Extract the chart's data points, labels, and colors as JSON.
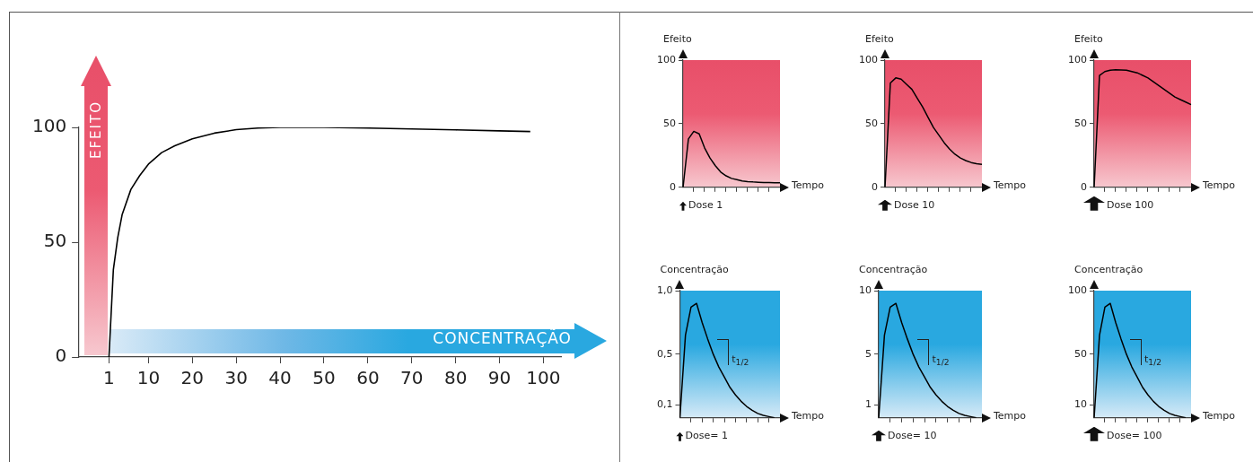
{
  "chart_data": [
    {
      "type": "line",
      "ylabel": "EFEITO",
      "xlabel": "CONCENTRAÇÃO",
      "xlim": [
        -6,
        104
      ],
      "xticks": [
        1,
        10,
        20,
        30,
        40,
        50,
        60,
        70,
        80,
        90,
        100
      ],
      "ylim": [
        0,
        100
      ],
      "yticks": [
        0,
        50,
        100
      ],
      "grid": false,
      "series": [
        {
          "color": "#000000",
          "x": [
            1,
            2,
            3,
            4,
            6,
            8,
            10,
            13,
            16,
            20,
            25,
            30,
            35,
            40,
            50,
            60,
            70,
            80,
            90,
            97
          ],
          "values": [
            0,
            38,
            52,
            62,
            73,
            79,
            84,
            89,
            92,
            95,
            97.5,
            99,
            99.7,
            100,
            100,
            99.7,
            99.3,
            98.9,
            98.5,
            98.2
          ]
        }
      ]
    },
    {
      "type": "line",
      "ylabel": "Efeito",
      "xlabel": "Tempo",
      "annotations": [
        "Dose 1"
      ],
      "categories": [
        null,
        null,
        null,
        null,
        null,
        null,
        null,
        null,
        null,
        null,
        null,
        null,
        null,
        null,
        null,
        null,
        null,
        null,
        null
      ],
      "ylim": [
        0,
        100
      ],
      "yticks": [
        0,
        50,
        100
      ],
      "grid": false,
      "series": [
        {
          "color": "#000000",
          "values": [
            0,
            38,
            44,
            42,
            31,
            23,
            17,
            12,
            9,
            7,
            6,
            5,
            4.5,
            4.2,
            4,
            3.8,
            3.7,
            3.6,
            3.5
          ]
        }
      ]
    },
    {
      "type": "line",
      "ylabel": "Efeito",
      "xlabel": "Tempo",
      "annotations": [
        "Dose 10"
      ],
      "categories": [
        null,
        null,
        null,
        null,
        null,
        null,
        null,
        null,
        null,
        null,
        null,
        null,
        null,
        null,
        null,
        null,
        null,
        null,
        null
      ],
      "ylim": [
        0,
        100
      ],
      "yticks": [
        0,
        50,
        100
      ],
      "grid": false,
      "series": [
        {
          "color": "#000000",
          "values": [
            0,
            82,
            86,
            85,
            81,
            77,
            70,
            63,
            55,
            47,
            41,
            35,
            30,
            26,
            23,
            21,
            19.5,
            18.5,
            18
          ]
        }
      ]
    },
    {
      "type": "line",
      "ylabel": "Efeito",
      "xlabel": "Tempo",
      "annotations": [
        "Dose 100"
      ],
      "categories": [
        null,
        null,
        null,
        null,
        null,
        null,
        null,
        null,
        null,
        null,
        null,
        null,
        null,
        null,
        null,
        null,
        null,
        null,
        null
      ],
      "ylim": [
        0,
        100
      ],
      "yticks": [
        0,
        50,
        100
      ],
      "grid": false,
      "series": [
        {
          "color": "#000000",
          "values": [
            0,
            88,
            91,
            92,
            92.5,
            92.3,
            92,
            91,
            90,
            88,
            86,
            83,
            80,
            77,
            74,
            71,
            69,
            67,
            65
          ]
        }
      ]
    },
    {
      "type": "line",
      "ylabel": "Concentração",
      "xlabel": "Tempo",
      "annotations": [
        "Dose= 1",
        "t$_{1/2}$"
      ],
      "categories": [
        null,
        null,
        null,
        null,
        null,
        null,
        null,
        null,
        null,
        null,
        null,
        null,
        null,
        null,
        null,
        null,
        null,
        null,
        null
      ],
      "ylim": [
        0,
        1
      ],
      "yticks": [
        {
          "value": 0.1,
          "label": "0,1"
        },
        {
          "value": 0.5,
          "label": "0,5"
        },
        {
          "value": 1,
          "label": "1,0"
        }
      ],
      "grid": false,
      "series": [
        {
          "color": "#000000",
          "values": [
            0,
            0.65,
            0.87,
            0.9,
            0.75,
            0.62,
            0.5,
            0.4,
            0.32,
            0.24,
            0.18,
            0.13,
            0.09,
            0.06,
            0.035,
            0.02,
            0.01,
            0,
            null
          ]
        }
      ]
    },
    {
      "type": "line",
      "ylabel": "Concentração",
      "xlabel": "Tempo",
      "annotations": [
        "Dose= 10",
        "t$_{1/2}$"
      ],
      "categories": [
        null,
        null,
        null,
        null,
        null,
        null,
        null,
        null,
        null,
        null,
        null,
        null,
        null,
        null,
        null,
        null,
        null,
        null,
        null
      ],
      "ylim": [
        0,
        10
      ],
      "yticks": [
        1,
        5,
        10
      ],
      "grid": false,
      "series": [
        {
          "color": "#000000",
          "values": [
            0,
            6.5,
            8.7,
            9,
            7.5,
            6.2,
            5,
            4,
            3.2,
            2.4,
            1.8,
            1.3,
            0.9,
            0.6,
            0.35,
            0.2,
            0.1,
            0,
            null
          ]
        }
      ]
    },
    {
      "type": "line",
      "ylabel": "Concentração",
      "xlabel": "Tempo",
      "annotations": [
        "Dose= 100",
        "t$_{1/2}$"
      ],
      "categories": [
        null,
        null,
        null,
        null,
        null,
        null,
        null,
        null,
        null,
        null,
        null,
        null,
        null,
        null,
        null,
        null,
        null,
        null,
        null
      ],
      "ylim": [
        0,
        100
      ],
      "yticks": [
        10,
        50,
        100
      ],
      "grid": false,
      "series": [
        {
          "color": "#000000",
          "values": [
            0,
            65,
            87,
            90,
            75,
            62,
            50,
            40,
            32,
            24,
            18,
            13,
            9,
            6,
            3.5,
            2,
            1,
            0,
            null
          ]
        }
      ]
    }
  ]
}
